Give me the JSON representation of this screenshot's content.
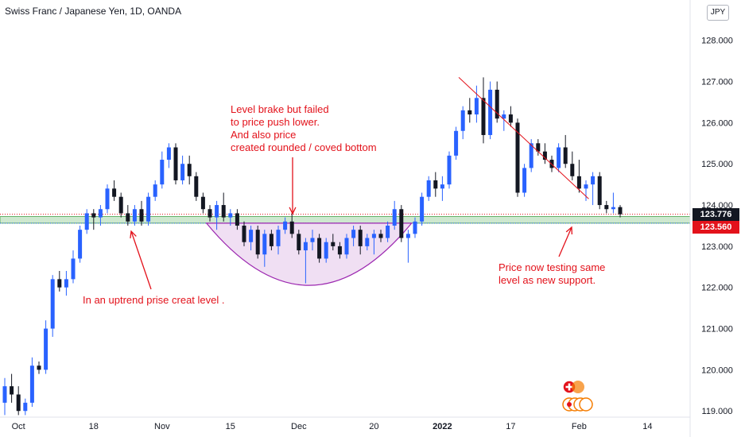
{
  "header": {
    "title": "Swiss Franc / Japanese Yen, 1D, OANDA",
    "currency_button": "JPY"
  },
  "annotations": {
    "level_note": "Level brake but failed\nto price push lower.\nAnd also price\ncreated rounded / coved bottom",
    "uptrend_note": "In an uptrend prise creat level .",
    "testing_note": "Price now testing same\nlevel as new support."
  },
  "price_tags": {
    "last_price": "123.776",
    "support_level": "123.560"
  },
  "colors": {
    "bull": "#2962ff",
    "bear": "#131722",
    "annotation": "#e3121b",
    "support_zone": "#a5d6a7",
    "rounded_bottom": "#9c27b0",
    "last_price_tag": "#131722",
    "support_tag": "#e3121b"
  },
  "icons": [
    "swiss-flag-icon",
    "japan-flag-icon"
  ],
  "chart_data": {
    "type": "candlestick",
    "symbol": "CHFJPY",
    "interval": "1D",
    "y_ticks": [
      119,
      120,
      121,
      122,
      123,
      124,
      125,
      126,
      127,
      128
    ],
    "y_tick_labels": [
      "119.000",
      "120.000",
      "121.000",
      "122.000",
      "123.000",
      "124.000",
      "125.000",
      "126.000",
      "127.000",
      "128.000"
    ],
    "x_tick_labels": [
      "Oct",
      "18",
      "Nov",
      "15",
      "Dec",
      "20",
      "2022",
      "17",
      "Feb",
      "14"
    ],
    "ylim": [
      118.85,
      128.4
    ],
    "support_zone": [
      123.56,
      123.72
    ],
    "last_price": 123.776,
    "support_level": 123.56,
    "candles": [
      {
        "o": 119.2,
        "h": 119.8,
        "l": 118.9,
        "c": 119.6
      },
      {
        "o": 119.6,
        "h": 119.9,
        "l": 119.2,
        "c": 119.4
      },
      {
        "o": 119.4,
        "h": 119.6,
        "l": 118.9,
        "c": 119.0
      },
      {
        "o": 119.0,
        "h": 119.3,
        "l": 118.9,
        "c": 119.2
      },
      {
        "o": 119.2,
        "h": 120.3,
        "l": 119.1,
        "c": 120.1
      },
      {
        "o": 120.1,
        "h": 120.2,
        "l": 119.9,
        "c": 120.0
      },
      {
        "o": 120.0,
        "h": 121.2,
        "l": 119.9,
        "c": 121.0
      },
      {
        "o": 121.0,
        "h": 122.3,
        "l": 120.8,
        "c": 122.2
      },
      {
        "o": 122.2,
        "h": 122.4,
        "l": 121.9,
        "c": 122.0
      },
      {
        "o": 122.0,
        "h": 122.4,
        "l": 121.8,
        "c": 122.2
      },
      {
        "o": 122.2,
        "h": 122.9,
        "l": 122.1,
        "c": 122.7
      },
      {
        "o": 122.7,
        "h": 123.5,
        "l": 122.6,
        "c": 123.4
      },
      {
        "o": 123.4,
        "h": 123.9,
        "l": 123.3,
        "c": 123.8
      },
      {
        "o": 123.8,
        "h": 123.9,
        "l": 123.4,
        "c": 123.7
      },
      {
        "o": 123.7,
        "h": 124.0,
        "l": 123.5,
        "c": 123.9
      },
      {
        "o": 123.9,
        "h": 124.5,
        "l": 123.8,
        "c": 124.4
      },
      {
        "o": 124.4,
        "h": 124.6,
        "l": 124.1,
        "c": 124.2
      },
      {
        "o": 124.2,
        "h": 124.3,
        "l": 123.7,
        "c": 123.8
      },
      {
        "o": 123.8,
        "h": 124.0,
        "l": 123.5,
        "c": 123.6
      },
      {
        "o": 123.6,
        "h": 124.0,
        "l": 123.5,
        "c": 123.9
      },
      {
        "o": 123.9,
        "h": 124.1,
        "l": 123.5,
        "c": 123.6
      },
      {
        "o": 123.6,
        "h": 124.3,
        "l": 123.5,
        "c": 124.2
      },
      {
        "o": 124.2,
        "h": 124.6,
        "l": 124.1,
        "c": 124.5
      },
      {
        "o": 124.5,
        "h": 125.3,
        "l": 124.4,
        "c": 125.1
      },
      {
        "o": 125.1,
        "h": 125.5,
        "l": 124.9,
        "c": 125.4
      },
      {
        "o": 125.4,
        "h": 125.5,
        "l": 124.5,
        "c": 124.6
      },
      {
        "o": 124.6,
        "h": 125.2,
        "l": 124.5,
        "c": 125.0
      },
      {
        "o": 125.0,
        "h": 125.2,
        "l": 124.5,
        "c": 124.7
      },
      {
        "o": 124.7,
        "h": 124.8,
        "l": 124.1,
        "c": 124.2
      },
      {
        "o": 124.2,
        "h": 124.3,
        "l": 123.8,
        "c": 123.9
      },
      {
        "o": 123.9,
        "h": 124.0,
        "l": 123.6,
        "c": 123.7
      },
      {
        "o": 123.7,
        "h": 124.1,
        "l": 123.4,
        "c": 124.0
      },
      {
        "o": 124.0,
        "h": 124.3,
        "l": 123.6,
        "c": 123.7
      },
      {
        "o": 123.7,
        "h": 123.9,
        "l": 123.5,
        "c": 123.8
      },
      {
        "o": 123.8,
        "h": 123.9,
        "l": 123.4,
        "c": 123.5
      },
      {
        "o": 123.5,
        "h": 123.6,
        "l": 123.0,
        "c": 123.1
      },
      {
        "o": 123.1,
        "h": 123.5,
        "l": 122.9,
        "c": 123.4
      },
      {
        "o": 123.4,
        "h": 123.5,
        "l": 122.7,
        "c": 122.8
      },
      {
        "o": 122.8,
        "h": 123.4,
        "l": 122.5,
        "c": 123.3
      },
      {
        "o": 123.3,
        "h": 123.4,
        "l": 122.9,
        "c": 123.0
      },
      {
        "o": 123.0,
        "h": 123.5,
        "l": 122.8,
        "c": 123.4
      },
      {
        "o": 123.4,
        "h": 123.7,
        "l": 123.3,
        "c": 123.6
      },
      {
        "o": 123.6,
        "h": 123.8,
        "l": 123.2,
        "c": 123.3
      },
      {
        "o": 123.3,
        "h": 123.4,
        "l": 122.8,
        "c": 122.9
      },
      {
        "o": 122.9,
        "h": 123.2,
        "l": 122.1,
        "c": 123.1
      },
      {
        "o": 123.1,
        "h": 123.4,
        "l": 122.9,
        "c": 123.2
      },
      {
        "o": 123.2,
        "h": 123.3,
        "l": 122.6,
        "c": 122.7
      },
      {
        "o": 122.7,
        "h": 123.2,
        "l": 122.6,
        "c": 123.1
      },
      {
        "o": 123.1,
        "h": 123.3,
        "l": 122.9,
        "c": 123.0
      },
      {
        "o": 123.0,
        "h": 123.1,
        "l": 122.7,
        "c": 122.8
      },
      {
        "o": 122.8,
        "h": 123.3,
        "l": 122.7,
        "c": 123.2
      },
      {
        "o": 123.2,
        "h": 123.5,
        "l": 123.0,
        "c": 123.4
      },
      {
        "o": 123.4,
        "h": 123.5,
        "l": 122.8,
        "c": 123.0
      },
      {
        "o": 123.0,
        "h": 123.3,
        "l": 122.9,
        "c": 123.2
      },
      {
        "o": 123.2,
        "h": 123.4,
        "l": 122.8,
        "c": 123.3
      },
      {
        "o": 123.3,
        "h": 123.4,
        "l": 123.1,
        "c": 123.2
      },
      {
        "o": 123.2,
        "h": 123.6,
        "l": 123.1,
        "c": 123.5
      },
      {
        "o": 123.5,
        "h": 124.1,
        "l": 123.4,
        "c": 123.9
      },
      {
        "o": 123.9,
        "h": 124.0,
        "l": 123.1,
        "c": 123.2
      },
      {
        "o": 123.2,
        "h": 123.4,
        "l": 122.6,
        "c": 123.3
      },
      {
        "o": 123.3,
        "h": 123.7,
        "l": 123.2,
        "c": 123.6
      },
      {
        "o": 123.6,
        "h": 124.3,
        "l": 123.5,
        "c": 124.2
      },
      {
        "o": 124.2,
        "h": 124.7,
        "l": 124.1,
        "c": 124.6
      },
      {
        "o": 124.6,
        "h": 124.8,
        "l": 124.2,
        "c": 124.4
      },
      {
        "o": 124.4,
        "h": 124.7,
        "l": 124.1,
        "c": 124.5
      },
      {
        "o": 124.5,
        "h": 125.3,
        "l": 124.4,
        "c": 125.2
      },
      {
        "o": 125.2,
        "h": 125.9,
        "l": 125.1,
        "c": 125.8
      },
      {
        "o": 125.8,
        "h": 126.4,
        "l": 125.6,
        "c": 126.3
      },
      {
        "o": 126.3,
        "h": 126.6,
        "l": 126.0,
        "c": 126.2
      },
      {
        "o": 126.2,
        "h": 126.9,
        "l": 126.0,
        "c": 126.6
      },
      {
        "o": 126.6,
        "h": 127.1,
        "l": 125.5,
        "c": 125.7
      },
      {
        "o": 125.7,
        "h": 127.0,
        "l": 125.6,
        "c": 126.8
      },
      {
        "o": 126.8,
        "h": 127.0,
        "l": 126.0,
        "c": 126.1
      },
      {
        "o": 126.1,
        "h": 126.3,
        "l": 125.8,
        "c": 126.2
      },
      {
        "o": 126.2,
        "h": 126.4,
        "l": 125.9,
        "c": 126.0
      },
      {
        "o": 126.0,
        "h": 126.1,
        "l": 124.2,
        "c": 124.3
      },
      {
        "o": 124.3,
        "h": 125.0,
        "l": 124.2,
        "c": 124.9
      },
      {
        "o": 124.9,
        "h": 125.6,
        "l": 124.8,
        "c": 125.5
      },
      {
        "o": 125.5,
        "h": 125.6,
        "l": 125.2,
        "c": 125.3
      },
      {
        "o": 125.3,
        "h": 125.5,
        "l": 125.0,
        "c": 125.1
      },
      {
        "o": 125.1,
        "h": 125.2,
        "l": 124.8,
        "c": 124.9
      },
      {
        "o": 124.9,
        "h": 125.5,
        "l": 124.8,
        "c": 125.4
      },
      {
        "o": 125.4,
        "h": 125.7,
        "l": 124.9,
        "c": 125.0
      },
      {
        "o": 125.0,
        "h": 125.3,
        "l": 124.6,
        "c": 124.7
      },
      {
        "o": 124.7,
        "h": 125.1,
        "l": 124.3,
        "c": 124.4
      },
      {
        "o": 124.4,
        "h": 124.6,
        "l": 124.1,
        "c": 124.5
      },
      {
        "o": 124.5,
        "h": 124.8,
        "l": 124.0,
        "c": 124.7
      },
      {
        "o": 124.7,
        "h": 124.8,
        "l": 123.9,
        "c": 124.0
      },
      {
        "o": 124.0,
        "h": 124.1,
        "l": 123.8,
        "c": 123.9
      },
      {
        "o": 123.9,
        "h": 124.3,
        "l": 123.8,
        "c": 123.95
      },
      {
        "o": 123.95,
        "h": 124.0,
        "l": 123.7,
        "c": 123.776
      }
    ]
  }
}
